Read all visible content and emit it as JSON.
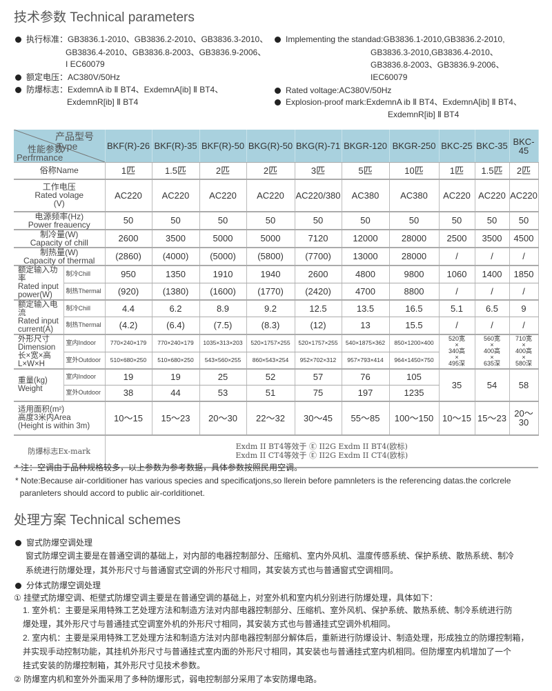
{
  "params": {
    "title": "技术参数 Technical parameters",
    "left": [
      {
        "bullet": true,
        "text": "执行标准：GB3836.1-2010、GB3836.2-2010、GB3836.3-2010、"
      },
      {
        "bullet": false,
        "text": "GB3836.4-2010、GB3836.8-2003、GB3836.9-2006、"
      },
      {
        "bullet": false,
        "text": "I EC60079"
      },
      {
        "bullet": true,
        "text": "额定电压：AC380V/50Hz"
      },
      {
        "bullet": true,
        "text": "防爆标志：ExdemnA ib Ⅱ BT4、ExdemnA[ib] Ⅱ BT4、"
      },
      {
        "bullet": false,
        "text": "ExdemnR[ib] Ⅱ BT4"
      }
    ],
    "right": [
      {
        "bullet": true,
        "text": "Implementing the standad:GB3836.1-2010,GB3836.2-2010,"
      },
      {
        "bullet": false,
        "text": "GB3836.3-2010,GB3836.4-2010、"
      },
      {
        "bullet": false,
        "text": "GB3836.8-2003、GB3836.9-2006、"
      },
      {
        "bullet": false,
        "text": "IEC60079"
      },
      {
        "bullet": true,
        "text": "Rated voltage:AC380V/50Hz"
      },
      {
        "bullet": true,
        "text": "Explosion-proof mark:ExdemnA ib Ⅱ BT4、ExdemnA[ib] Ⅱ BT4、"
      },
      {
        "bullet": false,
        "text": "ExdemnR[ib] Ⅱ BT4"
      }
    ]
  },
  "table": {
    "header": {
      "type_cn": "产品型号",
      "type_en": "Type",
      "perf_cn": "性能参数",
      "perf_en": "Perfrmance",
      "bg_color": "#a9d1de"
    },
    "models": [
      "BKF(R)-26",
      "BKF(R)-35",
      "BKF(R)-50",
      "BKG(R)-50",
      "BKG(R)-71",
      "BKGR-120",
      "BKGR-250",
      "BKC-25",
      "BKC-35",
      "BKC-45"
    ],
    "name": {
      "label": "俗称Name",
      "values": [
        "1匹",
        "1.5匹",
        "2匹",
        "2匹",
        "3匹",
        "5匹",
        "10匹",
        "1匹",
        "1.5匹",
        "2匹"
      ]
    },
    "voltage": {
      "label": "工作电压\nRated volage\n(V)",
      "values": [
        "AC220",
        "AC220",
        "AC220",
        "AC220",
        "AC220/380",
        "AC380",
        "AC380",
        "AC220",
        "AC220",
        "AC220"
      ]
    },
    "frequency": {
      "label": "电源频率(Hz)\nPower freauency",
      "values": [
        "50",
        "50",
        "50",
        "50",
        "50",
        "50",
        "50",
        "50",
        "50",
        "50"
      ]
    },
    "chill": {
      "label": "制冷量(W)\nCapacity of chill",
      "values": [
        "2600",
        "3500",
        "5000",
        "5000",
        "7120",
        "12000",
        "28000",
        "2500",
        "3500",
        "4500"
      ]
    },
    "thermal": {
      "label": "制热量(W)\nCapacity of thermal",
      "values": [
        "(2860)",
        "(4000)",
        "(5000)",
        "(5800)",
        "(7700)",
        "13000",
        "28000",
        "/",
        "/",
        "/"
      ]
    },
    "power": {
      "label": "额定输入功率\nRated input\npower(W)",
      "sub": [
        {
          "label": "制冷Chill",
          "values": [
            "950",
            "1350",
            "1910",
            "1940",
            "2600",
            "4800",
            "9800",
            "1060",
            "1400",
            "1850"
          ]
        },
        {
          "label": "制热Thermal",
          "values": [
            "(920)",
            "(1380)",
            "(1600)",
            "(1770)",
            "(2420)",
            "4700",
            "8800",
            "/",
            "/",
            "/"
          ]
        }
      ]
    },
    "current": {
      "label": "额定输入电流\nRated input\ncurrent(A)",
      "sub": [
        {
          "label": "制冷Chill",
          "values": [
            "4.4",
            "6.2",
            "8.9",
            "9.2",
            "12.5",
            "13.5",
            "16.5",
            "5.1",
            "6.5",
            "9"
          ]
        },
        {
          "label": "制热Thermal",
          "values": [
            "(4.2)",
            "(6.4)",
            "(7.5)",
            "(8.3)",
            "(12)",
            "13",
            "15.5",
            "/",
            "/",
            "/"
          ]
        }
      ]
    },
    "dimension": {
      "label": "外形尺寸\nDimension\n长×宽×高\nL×W×H",
      "sub": [
        {
          "label": "室内Indoor",
          "values": [
            "770×240×179",
            "770×240×179",
            "1035×313×203",
            "520×1757×255",
            "520×1757×255",
            "540×1875×362",
            "850×1200×400"
          ]
        },
        {
          "label": "室外Outdoor",
          "values": [
            "510×680×250",
            "510×680×250",
            "543×560×255",
            "860×543×254",
            "952×702×312",
            "957×793×414",
            "964×1450×750"
          ]
        }
      ],
      "merged": [
        "520宽\n×\n340高\n×\n495深",
        "560宽\n×\n400高\n×\n635深",
        "710宽\n×\n400高\n×\n580深"
      ]
    },
    "weight": {
      "label": "重量(kg)\nWeight",
      "sub": [
        {
          "label": "室内Indoor",
          "values": [
            "19",
            "19",
            "25",
            "52",
            "57",
            "76",
            "105"
          ]
        },
        {
          "label": "室外Outdoor",
          "values": [
            "38",
            "44",
            "53",
            "51",
            "75",
            "197",
            "1235"
          ]
        }
      ],
      "merged": [
        "35",
        "54",
        "58"
      ]
    },
    "area": {
      "label": "适用面积(m²)\n高度3米内Area\n(Height is within 3m)",
      "values": [
        "10～15",
        "15～23",
        "20～30",
        "22～32",
        "30～45",
        "55～85",
        "100～150",
        "10～15",
        "15～23",
        "20～30"
      ]
    },
    "exmark": {
      "label": "防爆标志Ex-mark",
      "lines": [
        "Exdm II BT4等效于 Ⓔ II2G Exdm II BT4(欧标)",
        "Exdm II CT4等效于 Ⓔ II2G Exdm II CT4(欧标)"
      ]
    }
  },
  "notes": [
    "* 注：空调由于品种规格较多，以上参数为参考数据，具体参数按照民用空调。",
    "* Note:Because air-corlditioner has various species and specificatjons,so llerein before pamnleters is the referencing datas.the corlcrele",
    "  paranleters should accord to public air-corlditionet."
  ],
  "schemes": {
    "title": "处理方案 Technical schemes",
    "lines": [
      {
        "bullet": true,
        "text": "窗式防爆空调处理"
      },
      {
        "bullet": false,
        "text": "窗式防爆空调主要是在普通空调的基础上，对内部的电器控制部分、压缩机、室内外风机、温度传感系统、保护系统、散热系统、制冷"
      },
      {
        "bullet": false,
        "text": "系统进行防爆处理，其外形尺寸与普通窗式空调的外形尺寸相同，其安装方式也与普通窗式空调相同。"
      },
      {
        "bullet": true,
        "text": "分体式防爆空调处理"
      },
      {
        "bullet": false,
        "text": "① 挂壁式防爆空调、柜壁式防爆空调主要是在普通空调的基础上，对室外机和室内机分别进行防爆处理，具体如下："
      },
      {
        "bullet": false,
        "text": "1. 室外机：主要是采用特殊工艺处理方法和制造方法对内部电器控制部分、压缩机、室外风机、保护系统、散热系统、制冷系统进行防"
      },
      {
        "bullet": false,
        "text": "爆处理，其外形尺寸与普通挂式空调室外机的外形尺寸相同，其安装方式也与普通挂式空调外机相同。"
      },
      {
        "bullet": false,
        "text": "2. 室内机：主要是采用特殊工艺处理方法和制造方法对内部电器控制部分解体后，重新进行防爆设计、制造处理，形成独立的防爆控制箱，"
      },
      {
        "bullet": false,
        "text": "并实现手动控制功能，其挂机外形尺寸与普通挂式室内面的外形尺寸相同，其安装也与普通挂式室内机相同。但防爆室内机增加了一个"
      },
      {
        "bullet": false,
        "text": "挂式安装的防爆控制箱，其外形尺寸见技术参数。"
      },
      {
        "bullet": false,
        "text": "② 防爆室内机和室外外面采用了多种防爆形式，弱电控制部分采用了本安防爆电路。"
      }
    ]
  }
}
